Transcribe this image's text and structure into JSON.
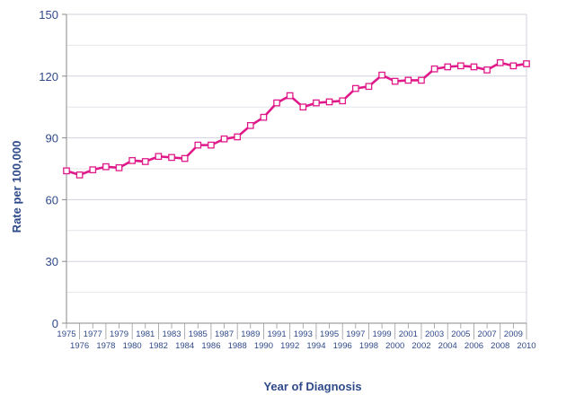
{
  "chart_data": {
    "type": "line",
    "title": "",
    "xlabel": "Year of Diagnosis",
    "ylabel": "Rate per 100,000",
    "ylim": [
      0,
      150
    ],
    "yticks": [
      0,
      30,
      60,
      90,
      120,
      150
    ],
    "grid": true,
    "legend": "none",
    "x": [
      "1975",
      "1976",
      "1977",
      "1978",
      "1979",
      "1980",
      "1981",
      "1982",
      "1983",
      "1984",
      "1985",
      "1986",
      "1987",
      "1988",
      "1989",
      "1990",
      "1991",
      "1992",
      "1993",
      "1994",
      "1995",
      "1996",
      "1997",
      "1998",
      "1999",
      "2000",
      "2001",
      "2002",
      "2003",
      "2004",
      "2005",
      "2006",
      "2007",
      "2008",
      "2009",
      "2010"
    ],
    "series": [
      {
        "color": "#e0198a",
        "values": [
          74,
          72,
          74.5,
          76,
          75.5,
          79,
          78.5,
          81,
          80.5,
          80,
          86.5,
          86.5,
          89.5,
          90.5,
          96,
          100,
          107,
          110.5,
          105,
          107,
          107.5,
          108,
          114,
          115,
          120.5,
          117.5,
          118,
          118,
          123.5,
          124.5,
          125,
          124.5,
          123,
          126.5,
          125,
          126
        ]
      }
    ]
  }
}
